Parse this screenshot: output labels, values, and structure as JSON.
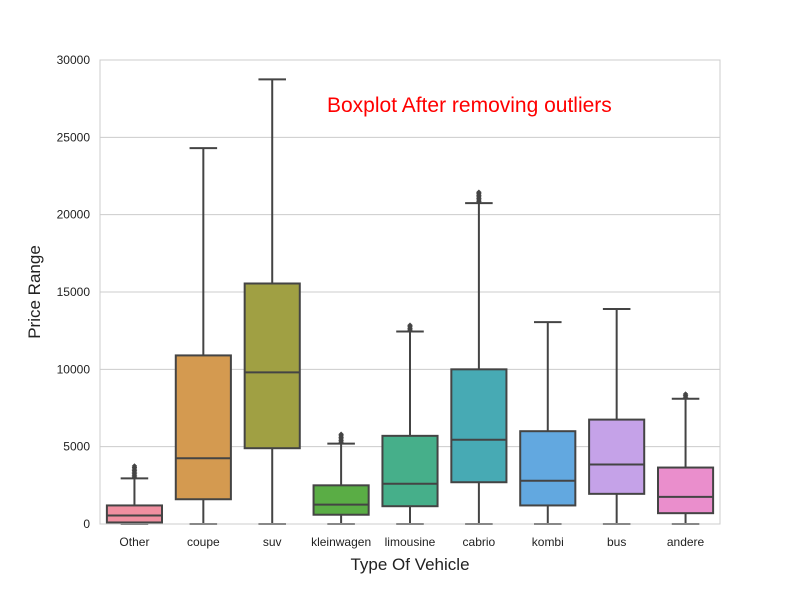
{
  "chart_data": {
    "type": "boxplot",
    "title": "Boxplot After removing outliers",
    "title_color": "#ff0000",
    "xlabel": "Type Of Vehicle",
    "ylabel": "Price Range",
    "ylim": [
      0,
      30000
    ],
    "yticks": [
      0,
      5000,
      10000,
      15000,
      20000,
      25000,
      30000
    ],
    "grid": "horizontal",
    "stroke_color": "#444444",
    "categories": [
      {
        "name": "Other",
        "color": "#f08fa0",
        "whisker_low": 0,
        "q1": 100,
        "median": 550,
        "q3": 1200,
        "whisker_high": 2950,
        "fliers": [
          3050,
          3150,
          3250,
          3350,
          3450,
          3550,
          3650,
          3750
        ]
      },
      {
        "name": "coupe",
        "color": "#d49a50",
        "whisker_low": 0,
        "q1": 1600,
        "median": 4250,
        "q3": 10900,
        "whisker_high": 24300,
        "fliers": []
      },
      {
        "name": "suv",
        "color": "#a0a043",
        "whisker_low": 0,
        "q1": 4900,
        "median": 9800,
        "q3": 15550,
        "whisker_high": 28750,
        "fliers": []
      },
      {
        "name": "kleinwagen",
        "color": "#5aad45",
        "whisker_low": 0,
        "q1": 600,
        "median": 1250,
        "q3": 2500,
        "whisker_high": 5200,
        "fliers": [
          5300,
          5400,
          5500,
          5600,
          5700,
          5800
        ]
      },
      {
        "name": "limousine",
        "color": "#46af8a",
        "whisker_low": 0,
        "q1": 1150,
        "median": 2600,
        "q3": 5700,
        "whisker_high": 12450,
        "fliers": [
          12550,
          12650,
          12750,
          12850
        ]
      },
      {
        "name": "cabrio",
        "color": "#47aab4",
        "whisker_low": 0,
        "q1": 2700,
        "median": 5450,
        "q3": 10000,
        "whisker_high": 20750,
        "fliers": [
          20850,
          20950,
          21050,
          21150,
          21250,
          21350,
          21450
        ]
      },
      {
        "name": "kombi",
        "color": "#62a8e0",
        "whisker_low": 0,
        "q1": 1200,
        "median": 2800,
        "q3": 6000,
        "whisker_high": 13050,
        "fliers": []
      },
      {
        "name": "bus",
        "color": "#c5a2e8",
        "whisker_low": 0,
        "q1": 1950,
        "median": 3850,
        "q3": 6750,
        "whisker_high": 13900,
        "fliers": []
      },
      {
        "name": "andere",
        "color": "#ea8ecc",
        "whisker_low": 0,
        "q1": 700,
        "median": 1750,
        "q3": 3650,
        "whisker_high": 8100,
        "fliers": [
          8200,
          8300,
          8400
        ]
      }
    ]
  }
}
